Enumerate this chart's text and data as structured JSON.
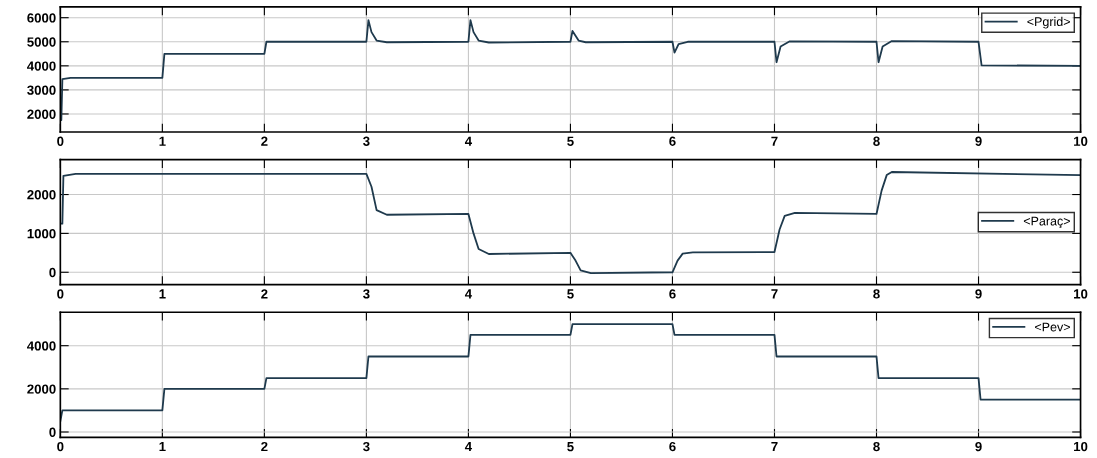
{
  "chart_data": [
    {
      "type": "line",
      "x": [
        0,
        0.01,
        0.02,
        0.1,
        1.0,
        1.02,
        2.0,
        2.02,
        3.0,
        3.02,
        3.05,
        3.1,
        3.2,
        4.0,
        4.02,
        4.05,
        4.1,
        4.2,
        5.0,
        5.02,
        5.08,
        5.15,
        6.0,
        6.02,
        6.06,
        6.15,
        7.0,
        7.02,
        7.06,
        7.15,
        8.0,
        8.02,
        8.06,
        8.15,
        9.0,
        9.03,
        10
      ],
      "series": [
        {
          "name": "<Pgrid>",
          "color": "#1f3a4d",
          "values": [
            1750,
            1750,
            3450,
            3500,
            3500,
            4500,
            4500,
            5000,
            5000,
            5900,
            5400,
            5050,
            4980,
            5000,
            5900,
            5400,
            5050,
            4970,
            5000,
            5450,
            5050,
            4980,
            5000,
            4550,
            4900,
            5000,
            5000,
            4150,
            4800,
            5020,
            5000,
            4150,
            4800,
            5030,
            5000,
            4020,
            4000
          ]
        }
      ],
      "xlim": [
        0,
        10
      ],
      "xticks": [
        0,
        1,
        2,
        3,
        4,
        5,
        6,
        7,
        8,
        9,
        10
      ],
      "ylim": [
        1250,
        6450
      ],
      "yticks": [
        2000,
        3000,
        4000,
        5000,
        6000
      ],
      "grid": true,
      "legend": "top right",
      "marker": "none",
      "line_style": "solid"
    },
    {
      "type": "line",
      "x": [
        0,
        0.02,
        0.03,
        0.15,
        3.0,
        3.05,
        3.1,
        3.2,
        4.0,
        4.05,
        4.1,
        4.2,
        5.0,
        5.05,
        5.1,
        5.2,
        6.0,
        6.05,
        6.1,
        6.2,
        7.0,
        7.05,
        7.1,
        7.2,
        8.0,
        8.05,
        8.1,
        8.15,
        10
      ],
      "series": [
        {
          "name": "<Paraç>",
          "color": "#1f3a4d",
          "values": [
            1250,
            1250,
            2480,
            2530,
            2530,
            2200,
            1600,
            1480,
            1500,
            1000,
            600,
            470,
            500,
            300,
            50,
            -20,
            0,
            300,
            480,
            510,
            520,
            1100,
            1450,
            1530,
            1500,
            2100,
            2500,
            2580,
            2500
          ]
        }
      ],
      "xlim": [
        0,
        10
      ],
      "xticks": [
        0,
        1,
        2,
        3,
        4,
        5,
        6,
        7,
        8,
        9,
        10
      ],
      "ylim": [
        -320,
        2900
      ],
      "yticks": [
        0,
        1000,
        2000
      ],
      "grid": true,
      "legend": "right",
      "marker": "none",
      "line_style": "solid"
    },
    {
      "type": "line",
      "x": [
        0,
        0.02,
        1.0,
        1.02,
        2,
        2.02,
        3,
        3.02,
        4,
        4.02,
        5,
        5.02,
        6,
        6.02,
        7,
        7.02,
        8,
        8.02,
        9,
        9.02,
        10
      ],
      "series": [
        {
          "name": "<Pev>",
          "color": "#1f3a4d",
          "values": [
            500,
            1000,
            1000,
            2000,
            2000,
            2500,
            2500,
            3500,
            3500,
            4500,
            4500,
            5000,
            5000,
            4500,
            4500,
            3500,
            3500,
            2500,
            2500,
            1500,
            1500
          ]
        }
      ],
      "xlim": [
        0,
        10
      ],
      "xticks": [
        0,
        1,
        2,
        3,
        4,
        5,
        6,
        7,
        8,
        9,
        10
      ],
      "ylim": [
        -250,
        5550
      ],
      "yticks": [
        0,
        2000,
        4000
      ],
      "grid": true,
      "legend": "top right",
      "marker": "none",
      "line_style": "solid"
    }
  ]
}
